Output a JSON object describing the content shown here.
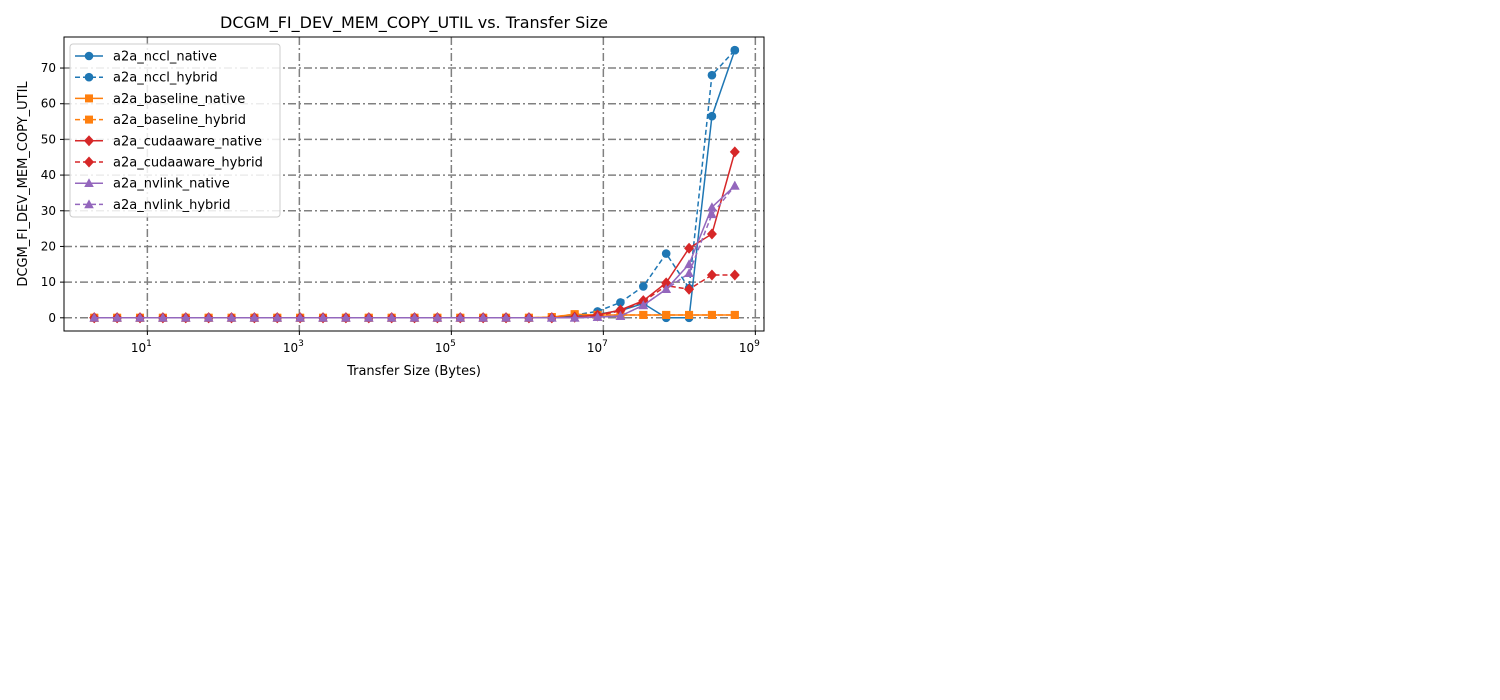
{
  "chart_data": {
    "type": "line",
    "title": "DCGM_FI_DEV_MEM_COPY_UTIL vs. Transfer Size",
    "xlabel": "Transfer Size (Bytes)",
    "ylabel": "DCGM_FI_DEV_MEM_COPY_UTIL",
    "xscale": "log",
    "xlim": [
      0.8,
      1300000000
    ],
    "ylim": [
      -3.7,
      78.7
    ],
    "xticks": [
      {
        "value": 10,
        "base": "10",
        "exp": "1"
      },
      {
        "value": 1000,
        "base": "10",
        "exp": "3"
      },
      {
        "value": 100000,
        "base": "10",
        "exp": "5"
      },
      {
        "value": 10000000,
        "base": "10",
        "exp": "7"
      },
      {
        "value": 1000000000,
        "base": "10",
        "exp": "9"
      }
    ],
    "yticks": [
      0,
      10,
      20,
      30,
      40,
      50,
      60,
      70
    ],
    "grid": true,
    "legend_position": "upper left",
    "x": [
      2,
      4,
      8,
      16,
      32,
      64,
      128,
      256,
      512,
      1024,
      2048,
      4096,
      8192,
      16384,
      32768,
      65536,
      131072,
      262144,
      524288,
      1048576,
      2097152,
      4194304,
      8388608,
      16777216,
      33554432,
      67108864,
      134217728,
      268435456,
      536870912
    ],
    "series": [
      {
        "name": "a2a_nccl_native",
        "color": "#1f77b4",
        "linestyle": "solid",
        "marker": "circle",
        "values": [
          0,
          0,
          0,
          0,
          0,
          0,
          0,
          0,
          0,
          0,
          0,
          0,
          0,
          0,
          0,
          0,
          0,
          0,
          0,
          0,
          0,
          0.5,
          1,
          2,
          4,
          0,
          0,
          56.5,
          75
        ]
      },
      {
        "name": "a2a_nccl_hybrid",
        "color": "#1f77b4",
        "linestyle": "dashed",
        "marker": "circle",
        "values": [
          0,
          0,
          0,
          0,
          0,
          0,
          0,
          0,
          0,
          0,
          0,
          0,
          0,
          0,
          0,
          0,
          0,
          0,
          0,
          0,
          0,
          0.8,
          1.8,
          4.3,
          8.8,
          18,
          8.3,
          68,
          75
        ]
      },
      {
        "name": "a2a_baseline_native",
        "color": "#ff7f0e",
        "linestyle": "solid",
        "marker": "square",
        "values": [
          0,
          0,
          0,
          0,
          0,
          0,
          0,
          0,
          0,
          0,
          0,
          0,
          0,
          0,
          0,
          0,
          0,
          0,
          0,
          0,
          0.2,
          1,
          0.8,
          0.8,
          0.8,
          0.8,
          0.8,
          0.8,
          0.8
        ]
      },
      {
        "name": "a2a_baseline_hybrid",
        "color": "#ff7f0e",
        "linestyle": "dashed",
        "marker": "square",
        "values": [
          0,
          0,
          0,
          0,
          0,
          0,
          0,
          0,
          0,
          0,
          0,
          0,
          0,
          0,
          0,
          0,
          0,
          0,
          0,
          0,
          0.2,
          1,
          0.8,
          0.8,
          0.8,
          0.8,
          0.8,
          0.8,
          0.8
        ]
      },
      {
        "name": "a2a_cudaaware_native",
        "color": "#d62728",
        "linestyle": "solid",
        "marker": "diamond",
        "values": [
          0,
          0,
          0,
          0,
          0,
          0,
          0,
          0,
          0,
          0,
          0,
          0,
          0,
          0,
          0,
          0,
          0,
          0,
          0,
          0,
          0,
          0.2,
          0.8,
          2.2,
          4.8,
          9.8,
          19.5,
          23.5,
          46.5
        ]
      },
      {
        "name": "a2a_cudaaware_hybrid",
        "color": "#d62728",
        "linestyle": "dashed",
        "marker": "diamond",
        "values": [
          0,
          0,
          0,
          0,
          0,
          0,
          0,
          0,
          0,
          0,
          0,
          0,
          0,
          0,
          0,
          0,
          0,
          0,
          0,
          0,
          0,
          0.2,
          0.5,
          2.0,
          4.5,
          9.0,
          8.0,
          12,
          12
        ]
      },
      {
        "name": "a2a_nvlink_native",
        "color": "#9467bd",
        "linestyle": "solid",
        "marker": "triangle",
        "values": [
          0,
          0,
          0,
          0,
          0,
          0,
          0,
          0,
          0,
          0,
          0,
          0,
          0,
          0,
          0,
          0,
          0,
          0,
          0,
          0,
          0,
          0,
          0.2,
          0.5,
          3.5,
          8,
          15,
          31,
          37
        ]
      },
      {
        "name": "a2a_nvlink_hybrid",
        "color": "#9467bd",
        "linestyle": "dashed",
        "marker": "triangle",
        "values": [
          0,
          0,
          0,
          0,
          0,
          0,
          0,
          0,
          0,
          0,
          0,
          0,
          0,
          0,
          0,
          0,
          0,
          0,
          0,
          0,
          0,
          0,
          0.2,
          0.5,
          3.5,
          8,
          12.5,
          29,
          37
        ]
      }
    ]
  }
}
